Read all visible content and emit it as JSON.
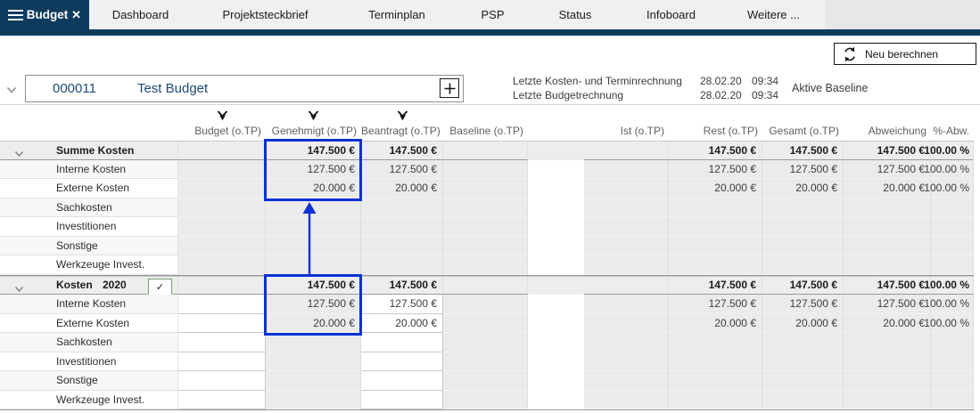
{
  "colors": {
    "navy": "#0d3b5e",
    "selection_blue": "#0b31d4",
    "checkbox_green": "#7ba37b"
  },
  "icons": {
    "close": "✕",
    "check": "✓"
  },
  "tab_bar": {
    "active_tab": "Budget",
    "tabs": [
      "Dashboard",
      "Projektsteckbrief",
      "Terminplan",
      "PSP",
      "Status",
      "Infoboard",
      "Weitere ..."
    ]
  },
  "toolbar": {
    "recalc": "Neu berechnen"
  },
  "project": {
    "number": "000011",
    "name": "Test Budget",
    "calc_rows": [
      {
        "label": "Letzte Kosten- und Terminrechnung",
        "date": "28.02.20",
        "time": "09:34"
      },
      {
        "label": "Letzte Budgetrechnung",
        "date": "28.02.20",
        "time": "09:34"
      }
    ],
    "baseline": "Aktive Baseline"
  },
  "columns": {
    "budget": "Budget (o.TP)",
    "genehmigt": "Genehmigt (o.TP)",
    "beantragt": "Beantragt (o.TP)",
    "baseline": "Baseline (o.TP)",
    "ist": "Ist (o.TP)",
    "rest": "Rest (o.TP)",
    "gesamt": "Gesamt (o.TP)",
    "abweichung": "Abweichung",
    "pabw": "%-Abw."
  },
  "groups": [
    {
      "label": "Summe Kosten",
      "year": "",
      "checkbox": false,
      "rows": [
        {
          "label": "Summe Kosten",
          "genehmigt": "147.500 €",
          "beantragt": "147.500 €",
          "rest": "147.500 €",
          "gesamt": "147.500 €",
          "abweichung": "147.500 €",
          "pabw": "100.00 %"
        },
        {
          "label": "Interne Kosten",
          "genehmigt": "127.500 €",
          "beantragt": "127.500 €",
          "rest": "127.500 €",
          "gesamt": "127.500 €",
          "abweichung": "127.500 €",
          "pabw": "100.00 %"
        },
        {
          "label": "Externe Kosten",
          "genehmigt": "20.000 €",
          "beantragt": "20.000 €",
          "rest": "20.000 €",
          "gesamt": "20.000 €",
          "abweichung": "20.000 €",
          "pabw": "100.00 %"
        },
        {
          "label": "Sachkosten"
        },
        {
          "label": "Investitionen"
        },
        {
          "label": "Sonstige"
        },
        {
          "label": "Werkzeuge Invest."
        }
      ]
    },
    {
      "label": "Kosten",
      "year": "2020",
      "checkbox": true,
      "rows": [
        {
          "label": "Kosten",
          "genehmigt": "147.500 €",
          "beantragt": "147.500 €",
          "rest": "147.500 €",
          "gesamt": "147.500 €",
          "abweichung": "147.500 €",
          "pabw": "100.00 %"
        },
        {
          "label": "Interne Kosten",
          "genehmigt": "127.500 €",
          "beantragt": "127.500 €",
          "rest": "127.500 €",
          "gesamt": "127.500 €",
          "abweichung": "127.500 €",
          "pabw": "100.00 %"
        },
        {
          "label": "Externe Kosten",
          "genehmigt": "20.000 €",
          "beantragt": "20.000 €",
          "rest": "20.000 €",
          "gesamt": "20.000 €",
          "abweichung": "20.000 €",
          "pabw": "100.00 %"
        },
        {
          "label": "Sachkosten"
        },
        {
          "label": "Investitionen"
        },
        {
          "label": "Sonstige"
        },
        {
          "label": "Werkzeuge Invest."
        }
      ]
    }
  ]
}
